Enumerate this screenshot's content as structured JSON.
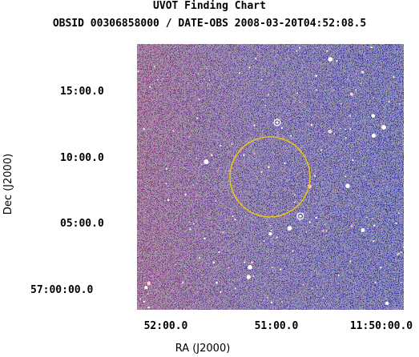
{
  "chart_data": {
    "type": "image",
    "title": "UVOT Finding Chart",
    "subtitle": "OBSID 00306858000 / DATE-OBS 2008-03-20T04:52:08.5",
    "xlabel": "RA (J2000)",
    "ylabel": "Dec (J2000)",
    "x_ticks": [
      "52:00.0",
      "51:00.0",
      "11:50:00.0"
    ],
    "y_ticks": [
      "15:00.0",
      "10:00.0",
      "05:00.0",
      "57:00:00.0"
    ],
    "colormap": [
      "#1e1ea0",
      "#3a3ac8",
      "#6464e0",
      "#c01818",
      "#e82020",
      "#ffffff"
    ],
    "overlay": {
      "circle_color": "#e8c21a",
      "marker_color": "#ffffff"
    }
  }
}
